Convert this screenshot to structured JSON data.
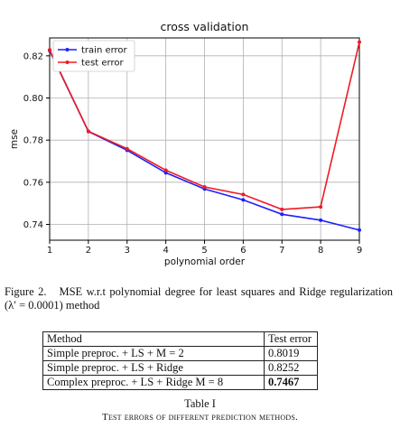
{
  "chart_data": {
    "type": "line",
    "title": "cross validation",
    "xlabel": "polynomial order",
    "ylabel": "mse",
    "x": [
      1,
      2,
      3,
      4,
      5,
      6,
      7,
      8,
      9
    ],
    "xticks": [
      "1",
      "2",
      "3",
      "4",
      "5",
      "6",
      "7",
      "8",
      "9"
    ],
    "yticks": [
      "0.74",
      "0.76",
      "0.78",
      "0.80",
      "0.82"
    ],
    "ytick_values": [
      0.74,
      0.76,
      0.78,
      0.8,
      0.82
    ],
    "xlim": [
      1,
      9
    ],
    "ylim": [
      0.7325,
      0.8285
    ],
    "grid": true,
    "legend_position": "top-left",
    "series": [
      {
        "name": "train error",
        "color": "#1f1fff",
        "values": [
          0.8225,
          0.7841,
          0.7752,
          0.7645,
          0.7568,
          0.7516,
          0.7448,
          0.742,
          0.7373
        ]
      },
      {
        "name": "test error",
        "color": "#ee1c25",
        "values": [
          0.8228,
          0.7842,
          0.7759,
          0.7657,
          0.7578,
          0.7542,
          0.7471,
          0.7483,
          0.8265
        ]
      }
    ]
  },
  "caption": {
    "label": "Figure 2.",
    "text": "MSE w.r.t polynomial degree for least squares and Ridge regularization (λ′ = 0.0001) method"
  },
  "table": {
    "headers": [
      "Method",
      "Test error"
    ],
    "rows": [
      {
        "method": "Simple preproc. + LS + M = 2",
        "error": "0.8019"
      },
      {
        "method": "Simple preproc. + LS + Ridge",
        "error": "0.8252"
      },
      {
        "method": "Complex preproc. + LS + Ridge M = 8",
        "error": "0.7467"
      }
    ],
    "title": "Table I",
    "subtitle": "Test errors of different prediction methods."
  }
}
